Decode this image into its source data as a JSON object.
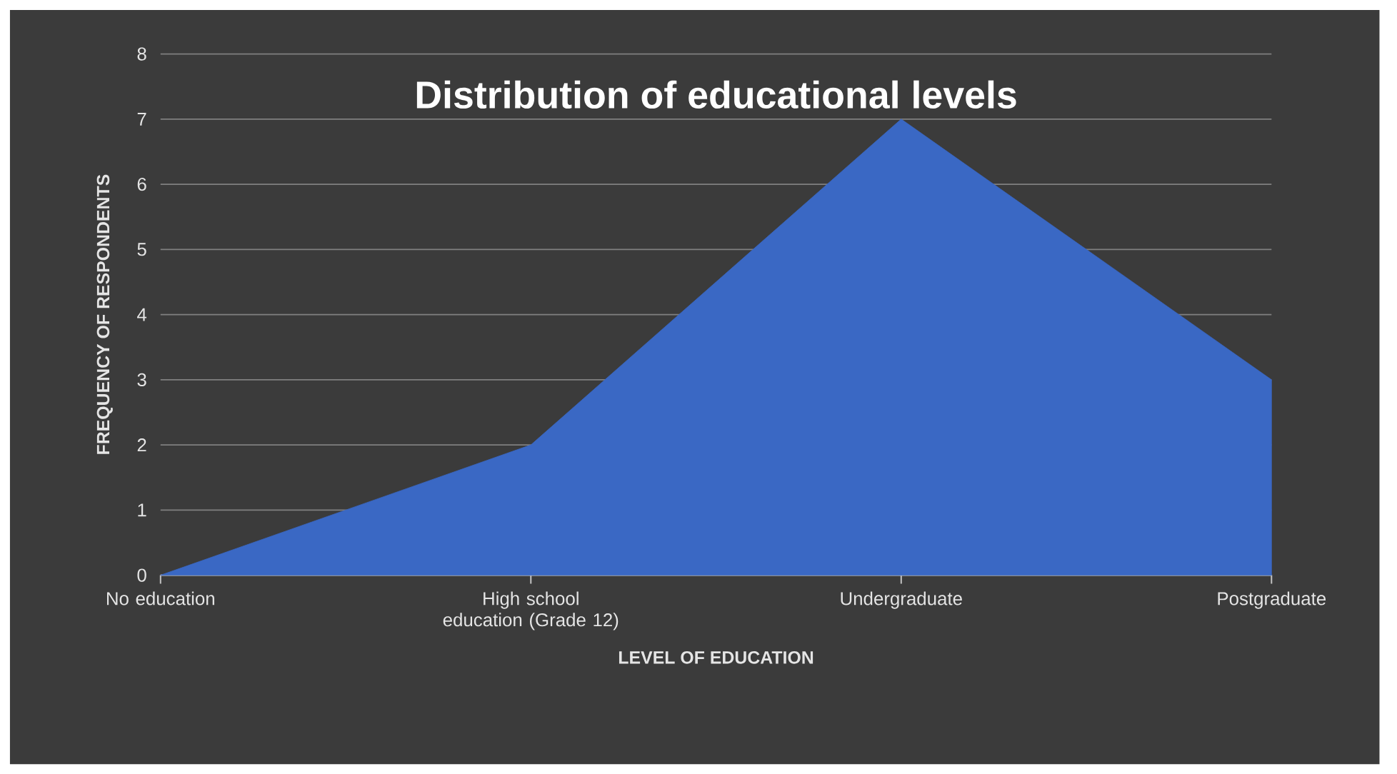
{
  "chart_data": {
    "type": "area",
    "title": "Distribution of educational levels",
    "xlabel": "LEVEL OF EDUCATION",
    "ylabel": "FREQUENCY OF RESPONDENTS",
    "categories": [
      "No education",
      "High school education (Grade 12)",
      "Undergraduate",
      "Postgraduate"
    ],
    "values": [
      0,
      2,
      7,
      3
    ],
    "color": "#3a68c4",
    "ylim": [
      0,
      8
    ],
    "yticks": [
      0,
      1,
      2,
      3,
      4,
      5,
      6,
      7,
      8
    ],
    "grid": "y"
  }
}
